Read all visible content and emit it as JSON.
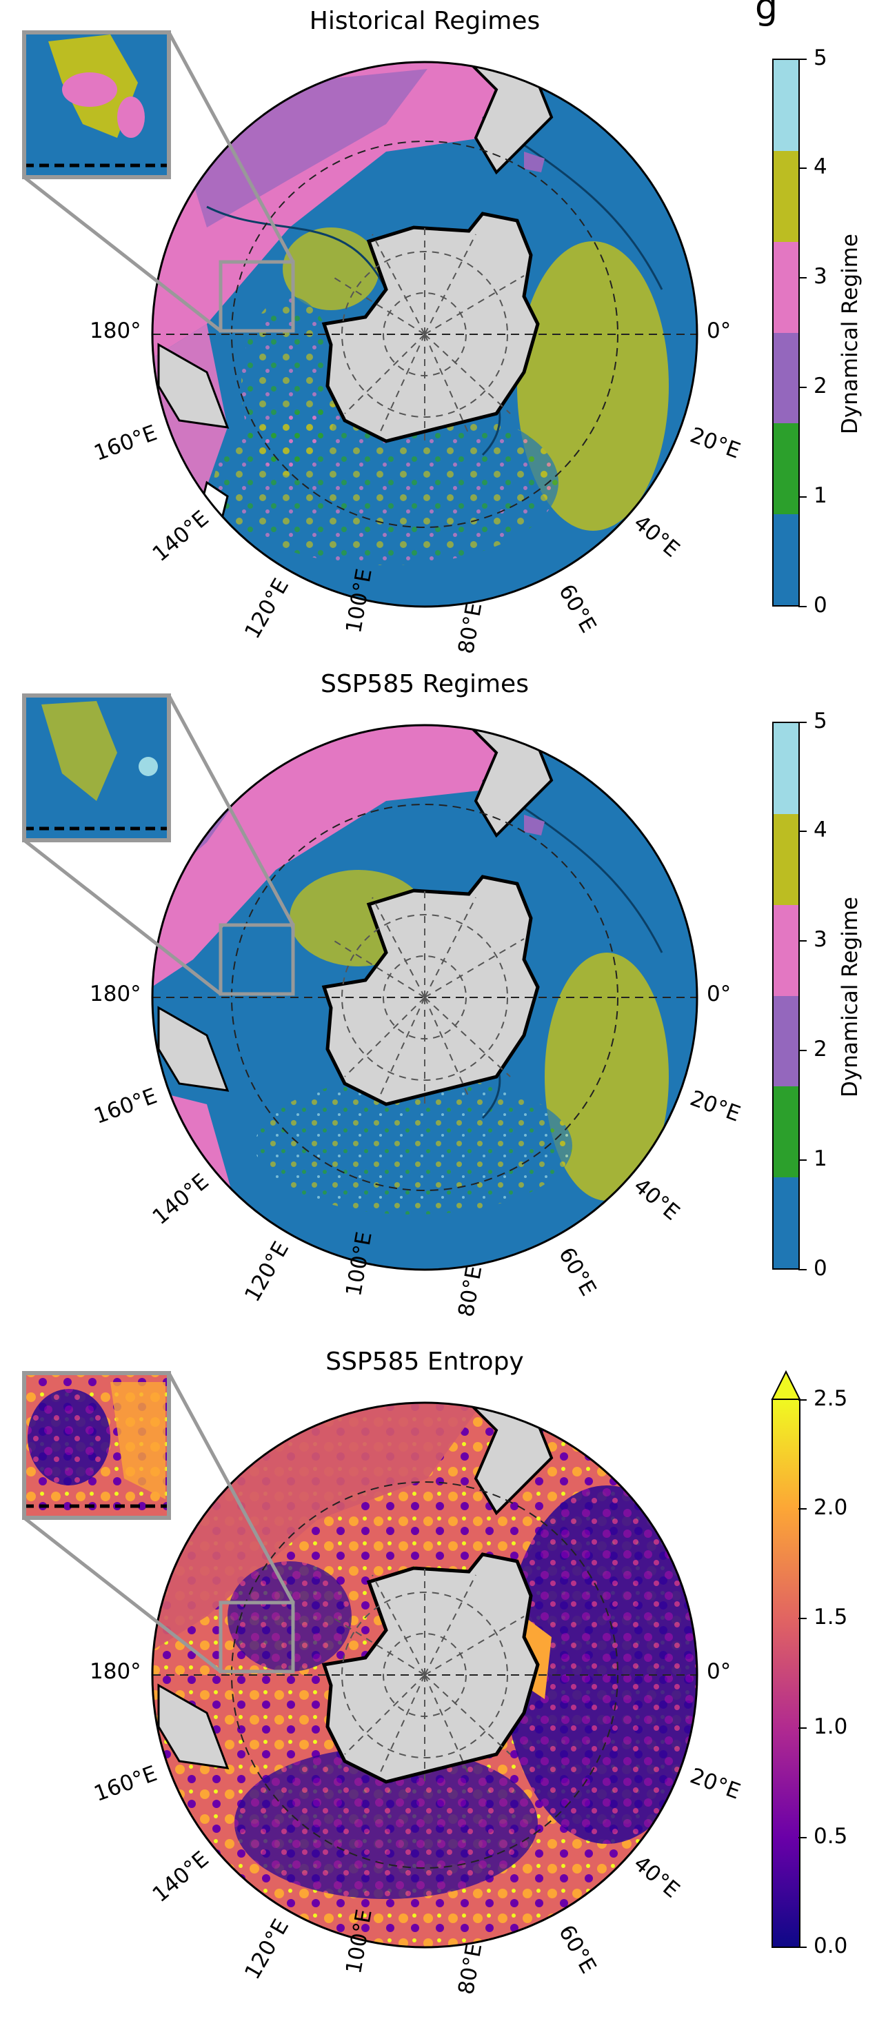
{
  "figure_partial_title": "g",
  "longitude_labels": [
    "180°",
    "0°",
    "160°E",
    "20°E",
    "140°E",
    "40°E",
    "120°E",
    "60°E",
    "100°E",
    "80°E"
  ],
  "panels": [
    {
      "title": "Historical Regimes",
      "colorbar": {
        "label": "Dynamical Regime",
        "ticks": [
          "0",
          "1",
          "2",
          "3",
          "4",
          "5"
        ],
        "colors": [
          "#1f77b4",
          "#2ca02c",
          "#9467bd",
          "#e377c2",
          "#bcbd22",
          "#9edae5"
        ],
        "type": "discrete"
      }
    },
    {
      "title": "SSP585 Regimes",
      "colorbar": {
        "label": "Dynamical Regime",
        "ticks": [
          "0",
          "1",
          "2",
          "3",
          "4",
          "5"
        ],
        "colors": [
          "#1f77b4",
          "#2ca02c",
          "#9467bd",
          "#e377c2",
          "#bcbd22",
          "#9edae5"
        ],
        "type": "discrete"
      }
    },
    {
      "title": "SSP585 Entropy",
      "colorbar": {
        "label": "",
        "ticks": [
          "0.0",
          "0.5",
          "1.0",
          "1.5",
          "2.0",
          "2.5"
        ],
        "range": [
          0.0,
          2.5
        ],
        "colormap": "plasma",
        "extend": "max",
        "type": "continuous"
      }
    }
  ]
}
